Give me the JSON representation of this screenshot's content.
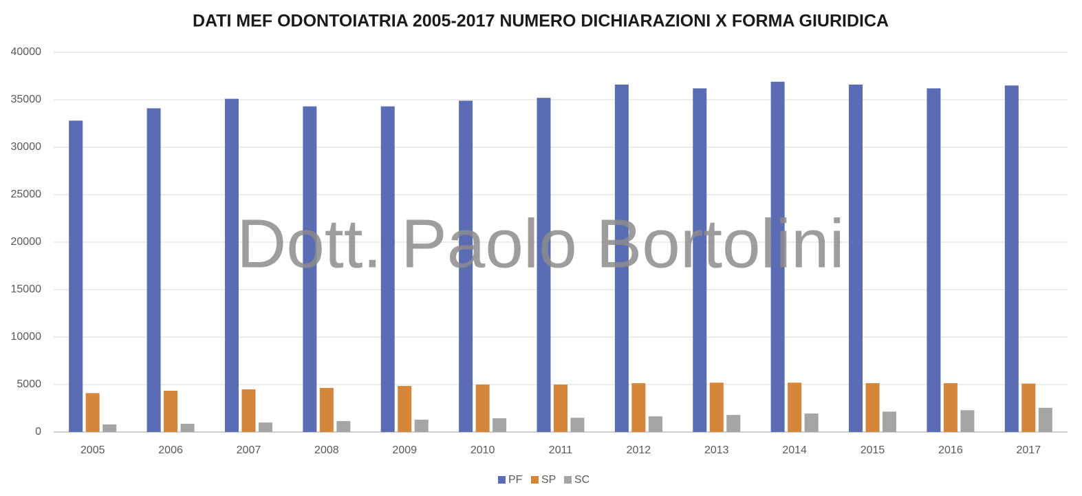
{
  "chart_data": {
    "type": "bar",
    "title": "DATI MEF ODONTOIATRIA 2005-2017 NUMERO DICHIARAZIONI X FORMA GIURIDICA",
    "watermark": "Dott. Paolo Bortolini",
    "categories": [
      "2005",
      "2006",
      "2007",
      "2008",
      "2009",
      "2010",
      "2011",
      "2012",
      "2013",
      "2014",
      "2015",
      "2016",
      "2017"
    ],
    "series": [
      {
        "name": "PF",
        "color": "#5a6db4",
        "values": [
          32800,
          34100,
          35100,
          34300,
          34300,
          34900,
          35200,
          36600,
          36200,
          36900,
          36600,
          36200,
          36500
        ]
      },
      {
        "name": "SP",
        "color": "#d4873a",
        "values": [
          4100,
          4350,
          4500,
          4650,
          4850,
          5000,
          5000,
          5150,
          5200,
          5200,
          5150,
          5150,
          5100
        ]
      },
      {
        "name": "SC",
        "color": "#a5a5a5",
        "values": [
          800,
          870,
          1000,
          1150,
          1300,
          1450,
          1500,
          1650,
          1800,
          1950,
          2150,
          2300,
          2550
        ]
      }
    ],
    "ylim": [
      0,
      40000
    ],
    "yticks": [
      0,
      5000,
      10000,
      15000,
      20000,
      25000,
      30000,
      35000,
      40000
    ],
    "grid": true,
    "legend": "bottom"
  }
}
